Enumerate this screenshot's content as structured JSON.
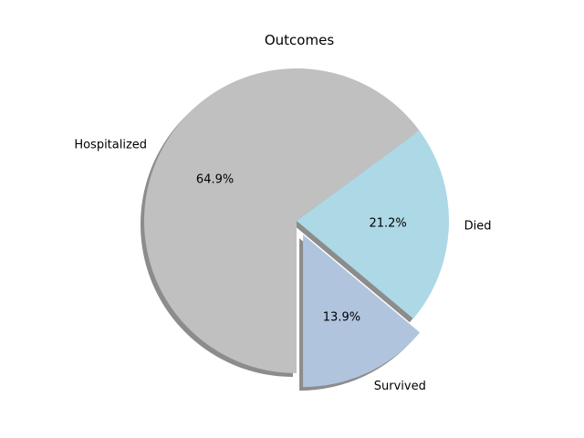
{
  "chart_data": {
    "type": "pie",
    "title": "Outcomes",
    "categories": [
      "Survived",
      "Died",
      "Hospitalized"
    ],
    "values": [
      13.9,
      21.2,
      64.9
    ],
    "percent_labels": [
      "13.9%",
      "21.2%",
      "64.9%"
    ],
    "colors": [
      "#b0c4de",
      "#add8e6",
      "#c0c0c0"
    ],
    "explode": [
      0.1,
      0,
      0
    ],
    "start_angle_deg": 270,
    "shadow": true,
    "legend": "none"
  }
}
